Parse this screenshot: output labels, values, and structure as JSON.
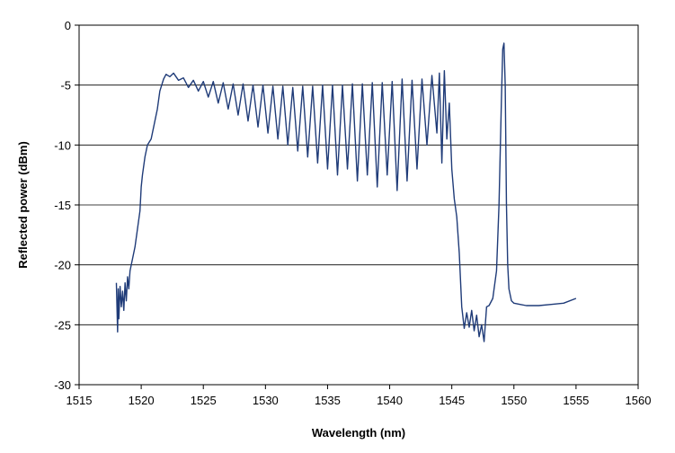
{
  "chart_data": {
    "type": "line",
    "title": "",
    "xlabel": "Wavelength (nm)",
    "ylabel": "Reflected power (dBm)",
    "xlim": [
      1515,
      1560
    ],
    "ylim": [
      -30,
      0
    ],
    "xticks": [
      1515,
      1520,
      1525,
      1530,
      1535,
      1540,
      1545,
      1550,
      1555,
      1560
    ],
    "yticks": [
      0,
      -5,
      -10,
      -15,
      -20,
      -25,
      -30
    ],
    "grid": "horizontal",
    "legend": "none",
    "series": [
      {
        "color": "#1f3b78",
        "x": [
          1518.0,
          1518.1,
          1518.15,
          1518.2,
          1518.3,
          1518.4,
          1518.5,
          1518.6,
          1518.7,
          1518.8,
          1518.9,
          1519.0,
          1519.1,
          1519.2,
          1519.3,
          1519.5,
          1519.7,
          1519.9,
          1520.0,
          1520.1,
          1520.3,
          1520.5,
          1520.8,
          1521.0,
          1521.3,
          1521.5,
          1521.8,
          1522.0,
          1522.3,
          1522.6,
          1523.0,
          1523.4,
          1523.8,
          1524.2,
          1524.6,
          1525.0,
          1525.4,
          1525.8,
          1526.2,
          1526.6,
          1527.0,
          1527.4,
          1527.8,
          1528.2,
          1528.6,
          1529.0,
          1529.4,
          1529.8,
          1530.2,
          1530.6,
          1531.0,
          1531.4,
          1531.8,
          1532.2,
          1532.6,
          1533.0,
          1533.4,
          1533.8,
          1534.2,
          1534.6,
          1535.0,
          1535.4,
          1535.8,
          1536.2,
          1536.6,
          1537.0,
          1537.4,
          1537.8,
          1538.2,
          1538.6,
          1539.0,
          1539.4,
          1539.8,
          1540.2,
          1540.6,
          1541.0,
          1541.4,
          1541.8,
          1542.2,
          1542.6,
          1543.0,
          1543.4,
          1543.8,
          1544.0,
          1544.2,
          1544.4,
          1544.6,
          1544.8,
          1545.0,
          1545.2,
          1545.4,
          1545.6,
          1545.8,
          1546.0,
          1546.2,
          1546.4,
          1546.6,
          1546.8,
          1547.0,
          1547.2,
          1547.4,
          1547.6,
          1547.8,
          1548.0,
          1548.3,
          1548.6,
          1548.8,
          1549.0,
          1549.1,
          1549.2,
          1549.3,
          1549.4,
          1549.5,
          1549.6,
          1549.8,
          1550.0,
          1550.5,
          1551.0,
          1552.0,
          1553.0,
          1554.0,
          1555.0
        ],
        "y": [
          -21.5,
          -25.6,
          -22.0,
          -24.5,
          -21.8,
          -23.5,
          -22.2,
          -23.8,
          -21.5,
          -23.0,
          -21.0,
          -22.0,
          -20.5,
          -20.0,
          -19.5,
          -18.5,
          -17.0,
          -15.5,
          -13.5,
          -12.5,
          -11.0,
          -10.0,
          -9.5,
          -8.5,
          -7.0,
          -5.5,
          -4.5,
          -4.1,
          -4.3,
          -4.0,
          -4.6,
          -4.4,
          -5.2,
          -4.6,
          -5.5,
          -4.7,
          -6.0,
          -4.7,
          -6.5,
          -4.8,
          -7.0,
          -4.9,
          -7.5,
          -4.9,
          -8.0,
          -5.0,
          -8.5,
          -5.0,
          -9.0,
          -5.1,
          -9.5,
          -5.1,
          -10.0,
          -5.2,
          -10.5,
          -5.1,
          -11.0,
          -5.1,
          -11.5,
          -5.0,
          -12.0,
          -5.0,
          -12.5,
          -5.0,
          -12.0,
          -4.9,
          -13.0,
          -4.9,
          -12.5,
          -4.8,
          -13.5,
          -4.8,
          -12.5,
          -4.7,
          -13.8,
          -4.5,
          -13.0,
          -4.6,
          -12.0,
          -4.5,
          -10.0,
          -4.2,
          -9.0,
          -4.0,
          -11.5,
          -3.8,
          -9.5,
          -6.5,
          -12.0,
          -14.5,
          -16.0,
          -19.0,
          -23.5,
          -25.3,
          -24.0,
          -25.2,
          -23.8,
          -25.5,
          -24.2,
          -26.0,
          -25.0,
          -26.4,
          -23.5,
          -23.4,
          -22.8,
          -20.5,
          -15.0,
          -6.0,
          -2.0,
          -1.5,
          -5.0,
          -15.0,
          -20.0,
          -22.0,
          -23.0,
          -23.2,
          -23.3,
          -23.4,
          -23.4,
          -23.3,
          -23.2,
          -22.8
        ],
        "y_step_minima_note": ""
      }
    ]
  }
}
